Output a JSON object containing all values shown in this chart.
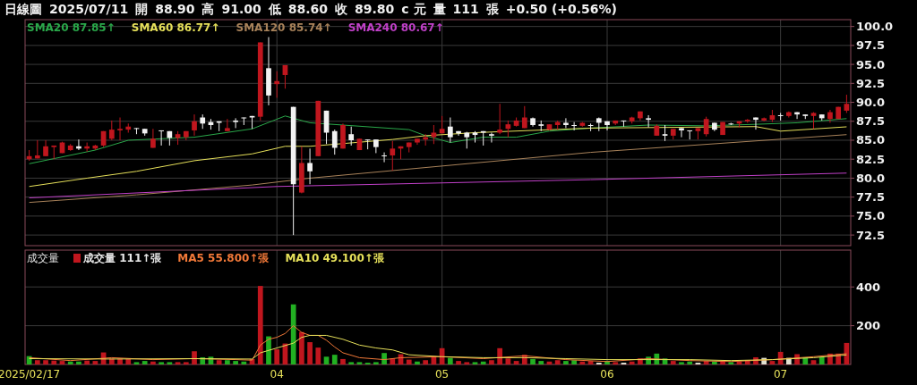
{
  "chart_data": [
    {
      "type": "candlestick",
      "annotations": [
        "日線圖",
        "2025/07/11",
        "開",
        "88.90",
        "高",
        "91.00",
        "低",
        "88.60",
        "收",
        "89.80",
        "c 元",
        "量",
        "111",
        "張",
        "+0.50 (+0.56%)"
      ],
      "categories": [
        "2025/02/17",
        null,
        null,
        null,
        null,
        null,
        null,
        null,
        null,
        null,
        null,
        null,
        null,
        null,
        null,
        null,
        null,
        null,
        null,
        null,
        null,
        null,
        null,
        null,
        null,
        null,
        null,
        null,
        null,
        null,
        "04",
        null,
        null,
        null,
        null,
        null,
        null,
        null,
        null,
        null,
        null,
        null,
        null,
        null,
        null,
        null,
        null,
        null,
        null,
        null,
        "05",
        null,
        null,
        null,
        null,
        null,
        null,
        null,
        null,
        null,
        null,
        null,
        null,
        null,
        null,
        null,
        null,
        null,
        null,
        null,
        "06",
        null,
        null,
        null,
        null,
        null,
        null,
        null,
        null,
        null,
        null,
        null,
        null,
        null,
        null,
        null,
        null,
        null,
        null,
        null,
        null,
        "07",
        null,
        null,
        null,
        null,
        null,
        null,
        null,
        null
      ],
      "ohlc": [
        [
          82.5,
          83.7,
          82.3,
          82.9
        ],
        [
          82.6,
          85.0,
          82.6,
          83.0
        ],
        [
          82.9,
          85.0,
          82.9,
          84.2
        ],
        [
          84.1,
          84.3,
          82.5,
          84.3
        ],
        [
          83.3,
          84.8,
          83.3,
          84.7
        ],
        [
          83.7,
          84.5,
          83.6,
          84.3
        ],
        [
          84.2,
          85.1,
          83.7,
          83.9
        ],
        [
          83.9,
          84.7,
          83.5,
          84.2
        ],
        [
          83.9,
          84.4,
          83.7,
          84.3
        ],
        [
          84.3,
          86.2,
          84.1,
          86.2
        ],
        [
          85.2,
          87.6,
          85.0,
          86.4
        ],
        [
          86.3,
          88.0,
          85.0,
          86.5
        ],
        [
          86.4,
          87.2,
          86.0,
          86.8
        ],
        [
          86.6,
          86.6,
          85.8,
          86.5
        ],
        [
          86.5,
          86.5,
          85.6,
          85.9
        ],
        [
          84.0,
          86.5,
          84.0,
          85.2
        ],
        [
          86.3,
          86.3,
          84.3,
          86.2
        ],
        [
          86.2,
          86.2,
          84.3,
          85.3
        ],
        [
          85.3,
          86.2,
          84.4,
          85.8
        ],
        [
          85.4,
          86.2,
          85.0,
          86.2
        ],
        [
          86.3,
          88.4,
          85.6,
          87.5
        ],
        [
          88.0,
          88.4,
          86.5,
          87.2
        ],
        [
          87.4,
          87.8,
          86.4,
          87.0
        ],
        [
          87.5,
          87.5,
          86.2,
          87.3
        ],
        [
          86.2,
          87.8,
          86.2,
          86.6
        ],
        [
          87.6,
          87.9,
          86.6,
          87.4
        ],
        [
          88.0,
          88.0,
          87.0,
          87.9
        ],
        [
          88.2,
          88.2,
          86.5,
          88.0
        ],
        [
          88.1,
          97.9,
          87.6,
          97.9
        ],
        [
          94.5,
          98.6,
          89.6,
          90.9
        ],
        [
          92.4,
          94.1,
          90.6,
          92.8
        ],
        [
          93.6,
          94.9,
          91.8,
          94.9
        ],
        [
          89.4,
          89.4,
          72.5,
          79.2
        ],
        [
          78.1,
          84.2,
          78.0,
          82.0
        ],
        [
          82.0,
          83.9,
          79.2,
          80.9
        ],
        [
          82.9,
          90.2,
          82.9,
          90.2
        ],
        [
          88.9,
          88.9,
          84.5,
          86.0
        ],
        [
          86.2,
          86.4,
          83.1,
          84.0
        ],
        [
          83.9,
          87.2,
          83.9,
          87.0
        ],
        [
          85.8,
          86.8,
          84.3,
          85.0
        ],
        [
          83.7,
          85.2,
          83.7,
          85.2
        ],
        [
          85.1,
          85.1,
          83.8,
          85.0
        ],
        [
          85.1,
          85.1,
          83.3,
          84.1
        ],
        [
          83.0,
          83.4,
          82.1,
          82.9
        ],
        [
          83.0,
          84.9,
          81.0,
          83.9
        ],
        [
          83.9,
          84.2,
          82.5,
          84.2
        ],
        [
          84.1,
          84.7,
          83.4,
          84.7
        ],
        [
          84.7,
          85.2,
          84.4,
          85.2
        ],
        [
          85.1,
          85.8,
          84.3,
          85.4
        ],
        [
          85.4,
          87.0,
          84.5,
          86.0
        ],
        [
          85.9,
          88.2,
          85.9,
          86.5
        ],
        [
          86.8,
          88.0,
          84.7,
          85.4
        ],
        [
          86.2,
          86.2,
          85.6,
          85.9
        ],
        [
          86.0,
          86.1,
          83.9,
          85.4
        ],
        [
          86.0,
          86.2,
          84.7,
          85.7
        ],
        [
          86.2,
          86.2,
          84.3,
          86.0
        ],
        [
          85.8,
          86.0,
          84.7,
          85.6
        ],
        [
          86.0,
          89.8,
          85.8,
          86.4
        ],
        [
          86.5,
          87.6,
          85.4,
          87.1
        ],
        [
          86.9,
          88.0,
          86.8,
          87.6
        ],
        [
          86.6,
          89.5,
          86.6,
          88.0
        ],
        [
          87.9,
          88.0,
          86.8,
          87.0
        ],
        [
          87.1,
          87.6,
          86.2,
          86.9
        ],
        [
          86.4,
          87.1,
          86.3,
          87.1
        ],
        [
          87.0,
          87.6,
          86.4,
          87.4
        ],
        [
          87.3,
          87.9,
          86.6,
          87.0
        ],
        [
          87.0,
          87.4,
          86.3,
          86.9
        ],
        [
          86.9,
          87.4,
          86.8,
          87.3
        ],
        [
          87.0,
          87.2,
          86.2,
          86.9
        ],
        [
          87.9,
          88.0,
          86.2,
          87.3
        ],
        [
          87.5,
          87.5,
          86.3,
          87.0
        ],
        [
          87.2,
          87.6,
          87.0,
          87.6
        ],
        [
          87.6,
          87.6,
          86.8,
          87.5
        ],
        [
          87.5,
          88.1,
          87.2,
          88.0
        ],
        [
          87.9,
          88.8,
          87.6,
          88.8
        ],
        [
          87.9,
          88.3,
          86.7,
          87.7
        ],
        [
          85.6,
          87.1,
          85.6,
          86.9
        ],
        [
          85.8,
          87.0,
          84.9,
          85.6
        ],
        [
          85.6,
          86.5,
          85.1,
          86.5
        ],
        [
          86.6,
          86.6,
          85.4,
          86.3
        ],
        [
          86.3,
          86.3,
          85.1,
          86.2
        ],
        [
          86.2,
          86.6,
          85.1,
          86.6
        ],
        [
          85.8,
          88.1,
          85.5,
          87.8
        ],
        [
          87.3,
          87.3,
          86.2,
          86.4
        ],
        [
          85.7,
          87.4,
          85.7,
          87.4
        ],
        [
          87.2,
          87.3,
          87.0,
          87.1
        ],
        [
          87.2,
          87.5,
          86.7,
          87.5
        ],
        [
          87.5,
          87.8,
          87.3,
          87.7
        ],
        [
          88.0,
          88.0,
          86.4,
          87.7
        ],
        [
          87.6,
          88.0,
          87.5,
          87.9
        ],
        [
          87.7,
          89.0,
          87.4,
          88.3
        ],
        [
          88.3,
          88.6,
          87.6,
          88.2
        ],
        [
          88.2,
          88.8,
          88.0,
          88.7
        ],
        [
          88.7,
          88.7,
          87.8,
          88.4
        ],
        [
          88.4,
          88.4,
          87.8,
          88.2
        ],
        [
          88.2,
          88.7,
          86.5,
          88.6
        ],
        [
          88.4,
          88.4,
          87.6,
          87.9
        ],
        [
          87.8,
          89.0,
          87.3,
          88.7
        ],
        [
          87.8,
          89.4,
          87.8,
          89.4
        ],
        [
          88.9,
          91.0,
          88.6,
          89.8
        ]
      ],
      "colors": [
        "#c0161e",
        "#c0161e",
        "#c0161e",
        "#c0161e",
        "#c0161e",
        "#c0161e",
        "#f2f2f2",
        "#c0161e",
        "#c0161e",
        "#c0161e",
        "#c0161e",
        "#c0161e",
        "#c0161e",
        "#f2f2f2",
        "#f2f2f2",
        "#c0161e",
        "#f2f2f2",
        "#f2f2f2",
        "#c0161e",
        "#c0161e",
        "#c0161e",
        "#f2f2f2",
        "#f2f2f2",
        "#f2f2f2",
        "#c0161e",
        "#f2f2f2",
        "#f2f2f2",
        "#f2f2f2",
        "#c0161e",
        "#f2f2f2",
        "#c0161e",
        "#c0161e",
        "#f2f2f2",
        "#c0161e",
        "#f2f2f2",
        "#c0161e",
        "#f2f2f2",
        "#f2f2f2",
        "#c0161e",
        "#f2f2f2",
        "#c0161e",
        "#f2f2f2",
        "#f2f2f2",
        "#f2f2f2",
        "#c0161e",
        "#c0161e",
        "#c0161e",
        "#c0161e",
        "#c0161e",
        "#c0161e",
        "#c0161e",
        "#f2f2f2",
        "#f2f2f2",
        "#f2f2f2",
        "#f2f2f2",
        "#f2f2f2",
        "#f2f2f2",
        "#c0161e",
        "#c0161e",
        "#c0161e",
        "#c0161e",
        "#f2f2f2",
        "#f2f2f2",
        "#c0161e",
        "#c0161e",
        "#f2f2f2",
        "#f2f2f2",
        "#c0161e",
        "#f2f2f2",
        "#f2f2f2",
        "#f2f2f2",
        "#c0161e",
        "#f2f2f2",
        "#c0161e",
        "#c0161e",
        "#f2f2f2",
        "#c0161e",
        "#f2f2f2",
        "#c0161e",
        "#f2f2f2",
        "#f2f2f2",
        "#c0161e",
        "#c0161e",
        "#f2f2f2",
        "#c0161e",
        "#f2f2f2",
        "#c0161e",
        "#c0161e",
        "#f2f2f2",
        "#c0161e",
        "#c0161e",
        "#f2f2f2",
        "#c0161e",
        "#f2f2f2",
        "#f2f2f2",
        "#c0161e",
        "#f2f2f2",
        "#c0161e",
        "#c0161e",
        "#c0161e"
      ],
      "series": [
        {
          "name": "SMA20 87.85↑",
          "type": "line",
          "color": "#2aa84a",
          "values": [
            81.9,
            null,
            null,
            null,
            null,
            null,
            null,
            null,
            83.7,
            null,
            null,
            null,
            85.0,
            null,
            null,
            null,
            null,
            null,
            null,
            null,
            85.4,
            null,
            null,
            null,
            null,
            null,
            null,
            86.5,
            null,
            null,
            null,
            88.2,
            null,
            null,
            87.3,
            null,
            null,
            null,
            null,
            null,
            null,
            null,
            null,
            null,
            null,
            null,
            86.4,
            null,
            85.6,
            null,
            null,
            84.7,
            null,
            null,
            null,
            85.4,
            null,
            null,
            null,
            85.4,
            null,
            null,
            null,
            86.2,
            null,
            null,
            null,
            null,
            86.6,
            null,
            null,
            null,
            null,
            null,
            null,
            87.0,
            null,
            null,
            null,
            null,
            null,
            null,
            86.9,
            null,
            null,
            null,
            null,
            null,
            87.1,
            null,
            null,
            null,
            null,
            87.3,
            null,
            null,
            null,
            null,
            null,
            87.85
          ]
        },
        {
          "name": "SMA60 86.77↑",
          "type": "line",
          "color": "#e6e05a",
          "values": [
            78.9,
            null,
            null,
            null,
            null,
            null,
            null,
            80.0,
            null,
            null,
            null,
            null,
            null,
            80.9,
            null,
            null,
            null,
            null,
            null,
            null,
            82.3,
            null,
            null,
            null,
            null,
            null,
            null,
            83.2,
            null,
            null,
            null,
            84.2,
            null,
            null,
            84.2,
            null,
            null,
            null,
            null,
            null,
            null,
            null,
            null,
            null,
            85.1,
            null,
            null,
            null,
            85.6,
            null,
            null,
            null,
            null,
            null,
            86.0,
            null,
            null,
            null,
            null,
            null,
            null,
            null,
            null,
            null,
            null,
            null,
            null,
            null,
            86.6,
            null,
            null,
            null,
            null,
            null,
            null,
            null,
            null,
            null,
            null,
            null,
            null,
            null,
            null,
            null,
            null,
            null,
            null,
            null,
            86.8,
            null,
            null,
            86.2,
            null,
            null,
            null,
            null,
            null,
            null,
            null,
            86.77
          ]
        },
        {
          "name": "SMA120 85.74↑",
          "type": "line",
          "color": "#a8825a",
          "values": [
            76.8,
            null,
            null,
            null,
            null,
            null,
            null,
            null,
            null,
            null,
            null,
            null,
            null,
            77.8,
            null,
            null,
            null,
            null,
            null,
            null,
            null,
            null,
            null,
            null,
            null,
            null,
            null,
            79.1,
            null,
            null,
            null,
            null,
            null,
            null,
            80.0,
            null,
            null,
            null,
            null,
            null,
            null,
            null,
            null,
            null,
            null,
            null,
            null,
            null,
            null,
            null,
            null,
            null,
            null,
            null,
            null,
            null,
            null,
            null,
            null,
            null,
            null,
            null,
            null,
            null,
            null,
            null,
            null,
            null,
            83.4,
            null,
            null,
            null,
            null,
            null,
            null,
            null,
            null,
            null,
            null,
            null,
            null,
            null,
            null,
            null,
            null,
            null,
            null,
            null,
            null,
            null,
            null,
            null,
            null,
            null,
            null,
            null,
            null,
            null,
            null,
            85.74
          ]
        },
        {
          "name": "SMA240 80.67↑",
          "type": "line",
          "color": "#c040c8",
          "values": [
            77.4,
            null,
            null,
            null,
            null,
            null,
            null,
            null,
            null,
            null,
            null,
            null,
            null,
            null,
            null,
            null,
            null,
            null,
            null,
            null,
            null,
            null,
            null,
            null,
            null,
            null,
            null,
            null,
            null,
            null,
            78.9,
            null,
            null,
            null,
            null,
            null,
            null,
            null,
            null,
            null,
            null,
            null,
            null,
            null,
            null,
            null,
            null,
            null,
            null,
            null,
            null,
            null,
            null,
            null,
            null,
            null,
            null,
            null,
            null,
            null,
            null,
            null,
            null,
            null,
            null,
            null,
            null,
            null,
            79.8,
            null,
            null,
            null,
            null,
            null,
            null,
            null,
            null,
            null,
            null,
            null,
            null,
            null,
            null,
            null,
            null,
            null,
            null,
            null,
            null,
            null,
            null,
            null,
            null,
            null,
            null,
            null,
            null,
            null,
            null,
            80.67
          ]
        }
      ],
      "ylim": [
        71.1,
        100.9
      ],
      "yticks": [
        {
          "value": 72.5,
          "label": "72.5"
        },
        {
          "value": 75,
          "label": "75.0"
        },
        {
          "value": 77.5,
          "label": "77.5"
        },
        {
          "value": 80,
          "label": "80.0"
        },
        {
          "value": 82.5,
          "label": "82.5"
        },
        {
          "value": 85,
          "label": "85.0"
        },
        {
          "value": 87.5,
          "label": "87.5"
        },
        {
          "value": 90,
          "label": "90.0"
        },
        {
          "value": 92.5,
          "label": "92.5"
        },
        {
          "value": 95,
          "label": "95.0"
        },
        {
          "value": 97.5,
          "label": "97.5"
        },
        {
          "value": 100,
          "label": "100.0"
        }
      ],
      "grid": true,
      "legend": "top left",
      "tick_labels": "y"
    },
    {
      "type": "bar",
      "title": "成交量",
      "categories": [
        "2025/02/17",
        null,
        null,
        null,
        null,
        null,
        null,
        null,
        null,
        null,
        null,
        null,
        null,
        null,
        null,
        null,
        null,
        null,
        null,
        null,
        null,
        null,
        null,
        null,
        null,
        null,
        null,
        null,
        null,
        null,
        "04",
        null,
        null,
        null,
        null,
        null,
        null,
        null,
        null,
        null,
        null,
        null,
        null,
        null,
        null,
        null,
        null,
        null,
        null,
        null,
        "05",
        null,
        null,
        null,
        null,
        null,
        null,
        null,
        null,
        null,
        null,
        null,
        null,
        null,
        null,
        null,
        null,
        null,
        null,
        null,
        "06",
        null,
        null,
        null,
        null,
        null,
        null,
        null,
        null,
        null,
        null,
        null,
        null,
        null,
        null,
        null,
        null,
        null,
        null,
        null,
        null,
        "07",
        null,
        null,
        null,
        null,
        null,
        null,
        null,
        null
      ],
      "series": [
        {
          "name": "成交量 111↑張",
          "type": "bar",
          "values": [
            43,
            22,
            22,
            20,
            18,
            15,
            15,
            20,
            18,
            62,
            30,
            30,
            28,
            12,
            18,
            15,
            12,
            12,
            12,
            12,
            68,
            37,
            40,
            22,
            22,
            18,
            15,
            28,
            405,
            145,
            78,
            108,
            310,
            167,
            115,
            87,
            40,
            50,
            28,
            12,
            12,
            9,
            12,
            59,
            31,
            53,
            25,
            15,
            22,
            43,
            84,
            34,
            18,
            12,
            12,
            15,
            22,
            84,
            31,
            18,
            50,
            28,
            18,
            15,
            22,
            18,
            22,
            15,
            18,
            9,
            18,
            12,
            9,
            15,
            31,
            40,
            56,
            31,
            18,
            12,
            15,
            9,
            18,
            15,
            15,
            12,
            15,
            22,
            37,
            34,
            18,
            65,
            34,
            53,
            37,
            22,
            37,
            56,
            56,
            111
          ],
          "colors": [
            "#22b022",
            "#c0161e",
            "#c0161e",
            "#c0161e",
            "#c0161e",
            "#22b022",
            "#22b022",
            "#c0161e",
            "#c0161e",
            "#c0161e",
            "#c0161e",
            "#c0161e",
            "#c0161e",
            "#22b022",
            "#22b022",
            "#c0161e",
            "#22b022",
            "#22b022",
            "#c0161e",
            "#c0161e",
            "#c0161e",
            "#22b022",
            "#22b022",
            "#c0161e",
            "#22b022",
            "#22b022",
            "#22b022",
            "#c0161e",
            "#c0161e",
            "#22b022",
            "#c0161e",
            "#c0161e",
            "#22b022",
            "#c0161e",
            "#c0161e",
            "#c0161e",
            "#22b022",
            "#22b022",
            "#c0161e",
            "#22b022",
            "#22b022",
            "#22b022",
            "#22b022",
            "#22b022",
            "#c0161e",
            "#c0161e",
            "#c0161e",
            "#22b022",
            "#c0161e",
            "#c0161e",
            "#c0161e",
            "#22b022",
            "#c0161e",
            "#c0161e",
            "#22b022",
            "#22b022",
            "#c0161e",
            "#c0161e",
            "#c0161e",
            "#c0161e",
            "#c0161e",
            "#22b022",
            "#22b022",
            "#c0161e",
            "#c0161e",
            "#22b022",
            "#22b022",
            "#c0161e",
            "#c0161e",
            "#e0e0d0",
            "#22b022",
            "#c0161e",
            "#e0e0d0",
            "#c0161e",
            "#c0161e",
            "#22b022",
            "#22b022",
            "#22b022",
            "#c0161e",
            "#22b022",
            "#22b022",
            "#e0e0d0",
            "#c0161e",
            "#22b022",
            "#c0161e",
            "#22b022",
            "#c0161e",
            "#c0161e",
            "#c0161e",
            "#e0e0d0",
            "#c0161e",
            "#c0161e",
            "#e0e0d0",
            "#c0161e",
            "#22b022",
            "#c0161e",
            "#22b022",
            "#c0161e",
            "#c0161e",
            "#c0161e"
          ]
        },
        {
          "name": "MA5 55.800↑張",
          "type": "line",
          "color": "#f07838",
          "values": [
            35,
            null,
            null,
            null,
            null,
            20,
            null,
            null,
            null,
            null,
            35,
            null,
            null,
            null,
            null,
            25,
            null,
            null,
            null,
            null,
            30,
            null,
            null,
            null,
            null,
            25,
            null,
            22,
            100,
            130,
            140,
            160,
            200,
            165,
            150,
            150,
            125,
            90,
            60,
            null,
            35,
            null,
            null,
            25,
            null,
            35,
            null,
            null,
            null,
            null,
            40,
            null,
            null,
            null,
            null,
            30,
            null,
            null,
            null,
            null,
            45,
            null,
            null,
            null,
            null,
            25,
            null,
            null,
            null,
            null,
            15,
            null,
            null,
            null,
            null,
            30,
            null,
            null,
            null,
            null,
            20,
            null,
            null,
            null,
            null,
            15,
            null,
            null,
            null,
            null,
            25,
            null,
            null,
            null,
            null,
            40,
            null,
            null,
            null,
            55.8
          ]
        },
        {
          "name": "MA10 49.100↑張",
          "type": "line",
          "color": "#e6e05a",
          "values": [
            30,
            null,
            null,
            null,
            null,
            null,
            null,
            null,
            null,
            null,
            28,
            null,
            null,
            null,
            null,
            null,
            null,
            null,
            null,
            null,
            30,
            null,
            null,
            null,
            null,
            null,
            null,
            28,
            60,
            null,
            85,
            null,
            110,
            140,
            150,
            null,
            150,
            null,
            130,
            null,
            100,
            null,
            85,
            null,
            75,
            null,
            50,
            null,
            null,
            null,
            40,
            null,
            null,
            null,
            null,
            35,
            null,
            null,
            null,
            null,
            35,
            null,
            null,
            null,
            null,
            30,
            null,
            null,
            null,
            null,
            25,
            null,
            null,
            null,
            null,
            25,
            null,
            null,
            null,
            null,
            25,
            null,
            null,
            null,
            null,
            20,
            null,
            null,
            null,
            null,
            25,
            null,
            null,
            null,
            null,
            35,
            null,
            null,
            null,
            49.1
          ]
        }
      ],
      "ylim": [
        0,
        590
      ],
      "yticks": [
        200,
        400
      ],
      "grid": true,
      "legend": "top left"
    }
  ]
}
